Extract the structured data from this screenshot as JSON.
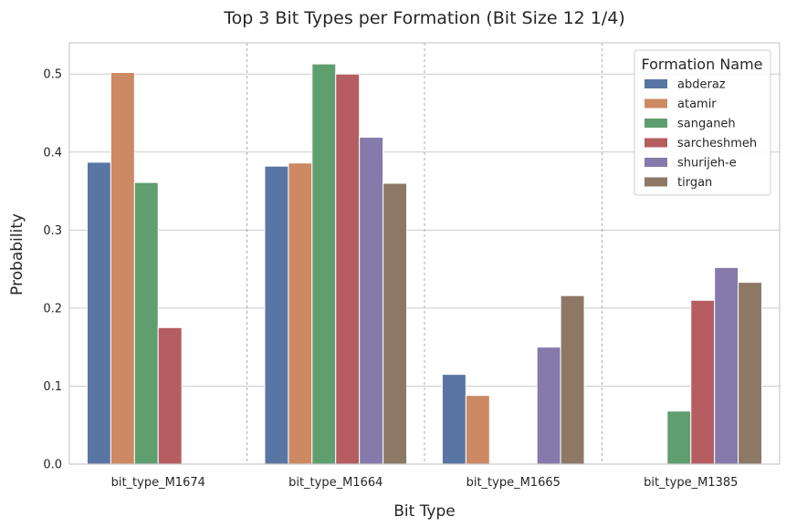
{
  "chart_data": {
    "type": "bar",
    "title": "Top 3 Bit Types per Formation (Bit Size 12 1/4)",
    "xlabel": "Bit Type",
    "ylabel": "Probability",
    "ylim": [
      0,
      0.54
    ],
    "yticks": [
      "0.0",
      "0.1",
      "0.2",
      "0.3",
      "0.4",
      "0.5"
    ],
    "categories": [
      "bit_type_M1674",
      "bit_type_M1664",
      "bit_type_M1665",
      "bit_type_M1385"
    ],
    "legend": {
      "title": "Formation Name",
      "placement": "top-right"
    },
    "grid": "horizontal",
    "category_separators": "dashed",
    "series": [
      {
        "name": "abderaz",
        "color": "#5875a4",
        "values": [
          0.387,
          0.382,
          0.115,
          null
        ]
      },
      {
        "name": "atamir",
        "color": "#cc8963",
        "values": [
          0.502,
          0.386,
          0.088,
          null
        ]
      },
      {
        "name": "sanganeh",
        "color": "#5f9e6e",
        "values": [
          0.361,
          0.513,
          null,
          0.068
        ]
      },
      {
        "name": "sarcheshmeh",
        "color": "#b55d60",
        "values": [
          0.175,
          0.5,
          null,
          0.21
        ]
      },
      {
        "name": "shurijeh-e",
        "color": "#857aab",
        "values": [
          null,
          0.419,
          0.15,
          0.252
        ]
      },
      {
        "name": "tirgan",
        "color": "#8d7866",
        "values": [
          null,
          0.36,
          0.216,
          0.233
        ]
      }
    ]
  }
}
